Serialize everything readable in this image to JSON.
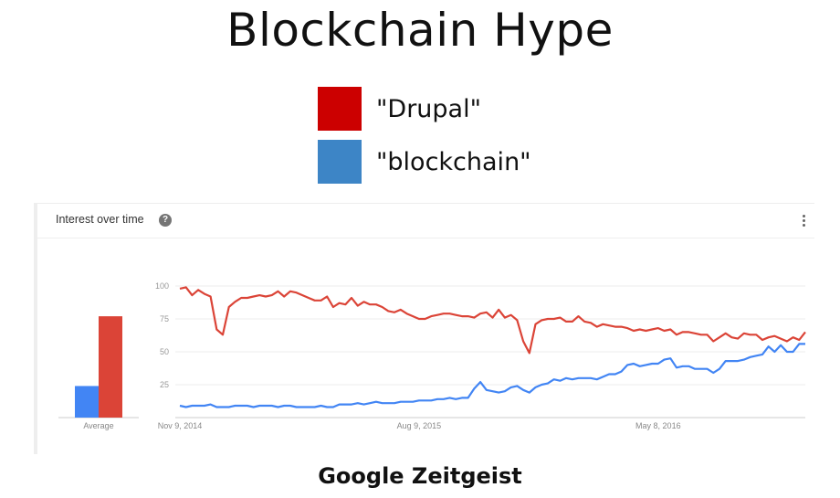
{
  "title": "Blockchain Hype",
  "legend": [
    {
      "label": "\"Drupal\"",
      "color": "#cc0000"
    },
    {
      "label": "\"blockchain\"",
      "color": "#3d85c6"
    }
  ],
  "card": {
    "header": "Interest over time",
    "help_icon": "?",
    "menu_icon": "more-vert-icon"
  },
  "footer": "Google Zeitgeist",
  "chart_data": [
    {
      "type": "bar",
      "categories": [
        "Average"
      ],
      "series": [
        {
          "color": "#4285f4",
          "values": [
            24
          ]
        },
        {
          "color": "#db4437",
          "values": [
            77
          ]
        }
      ],
      "ylim": [
        0,
        100
      ]
    },
    {
      "type": "line",
      "x_tick_labels": [
        "Nov 9, 2014",
        "Aug 9, 2015",
        "May 8, 2016"
      ],
      "x_tick_positions": [
        0,
        39,
        78
      ],
      "y_ticks": [
        100,
        75,
        50,
        25
      ],
      "ylim": [
        0,
        100
      ],
      "grid": true,
      "series": [
        {
          "color": "#db4437",
          "values": [
            98,
            99,
            93,
            97,
            94,
            92,
            67,
            63,
            84,
            88,
            91,
            91,
            92,
            93,
            92,
            93,
            96,
            92,
            96,
            95,
            93,
            91,
            89,
            89,
            92,
            84,
            87,
            86,
            91,
            85,
            88,
            86,
            86,
            84,
            81,
            80,
            82,
            79,
            77,
            75,
            75,
            77,
            78,
            79,
            79,
            78,
            77,
            77,
            76,
            79,
            80,
            76,
            82,
            76,
            78,
            74,
            58,
            49,
            71,
            74,
            75,
            75,
            76,
            73,
            73,
            77,
            73,
            72,
            69,
            71,
            70,
            69,
            69,
            68,
            66,
            67,
            66,
            67,
            68,
            66,
            67,
            63,
            65,
            65,
            64,
            63,
            63,
            58,
            61,
            64,
            61,
            60,
            64,
            63,
            63,
            59,
            61,
            62,
            60,
            58,
            61,
            59,
            65
          ]
        },
        {
          "color": "#4285f4",
          "values": [
            9,
            8,
            9,
            9,
            9,
            10,
            8,
            8,
            8,
            9,
            9,
            9,
            8,
            9,
            9,
            9,
            8,
            9,
            9,
            8,
            8,
            8,
            8,
            9,
            8,
            8,
            10,
            10,
            10,
            11,
            10,
            11,
            12,
            11,
            11,
            11,
            12,
            12,
            12,
            13,
            13,
            13,
            14,
            14,
            15,
            14,
            15,
            15,
            22,
            27,
            21,
            20,
            19,
            20,
            23,
            24,
            21,
            19,
            23,
            25,
            26,
            29,
            28,
            30,
            29,
            30,
            30,
            30,
            29,
            31,
            33,
            33,
            35,
            40,
            41,
            39,
            40,
            41,
            41,
            44,
            45,
            38,
            39,
            39,
            37,
            37,
            37,
            34,
            37,
            43,
            43,
            43,
            44,
            46,
            47,
            48,
            54,
            50,
            55,
            50,
            50,
            56,
            56
          ]
        }
      ]
    }
  ]
}
